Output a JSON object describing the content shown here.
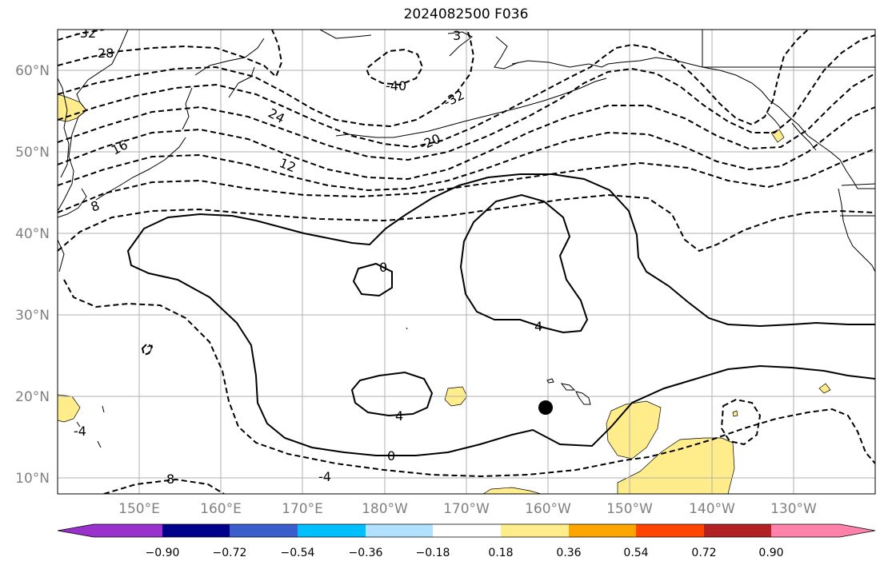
{
  "title": "2024082500 F036",
  "axes": {
    "lat_labels": [
      "60°N",
      "50°N",
      "40°N",
      "30°N",
      "20°N",
      "10°N"
    ],
    "lon_labels": [
      "150°E",
      "160°E",
      "170°E",
      "180°W",
      "170°W",
      "160°W",
      "150°W",
      "140°W",
      "130°W"
    ]
  },
  "contour_labels": {
    "neg": [
      "-32",
      "28",
      "24",
      "16",
      "12",
      "8",
      "-40",
      "-32",
      "-20",
      "3",
      "-4",
      "8",
      "-4"
    ],
    "pos": [
      "0",
      "4",
      "4",
      "0"
    ]
  },
  "colorbar": {
    "ticks": [
      "−0.90",
      "−0.72",
      "−0.54",
      "−0.36",
      "−0.18",
      "0.18",
      "0.36",
      "0.54",
      "0.72",
      "0.90"
    ],
    "colors": [
      "#9932cc",
      "#00008b",
      "#3a5fcd",
      "#00bfff",
      "#b0e2ff",
      "#ffffff",
      "#ffec8b",
      "#ffa500",
      "#ff4500",
      "#b22222",
      "#ff82ab"
    ]
  },
  "colors": {
    "shade_positive": "#ffec8b",
    "grid": "#b0b0b0",
    "marker": "#000000"
  }
}
